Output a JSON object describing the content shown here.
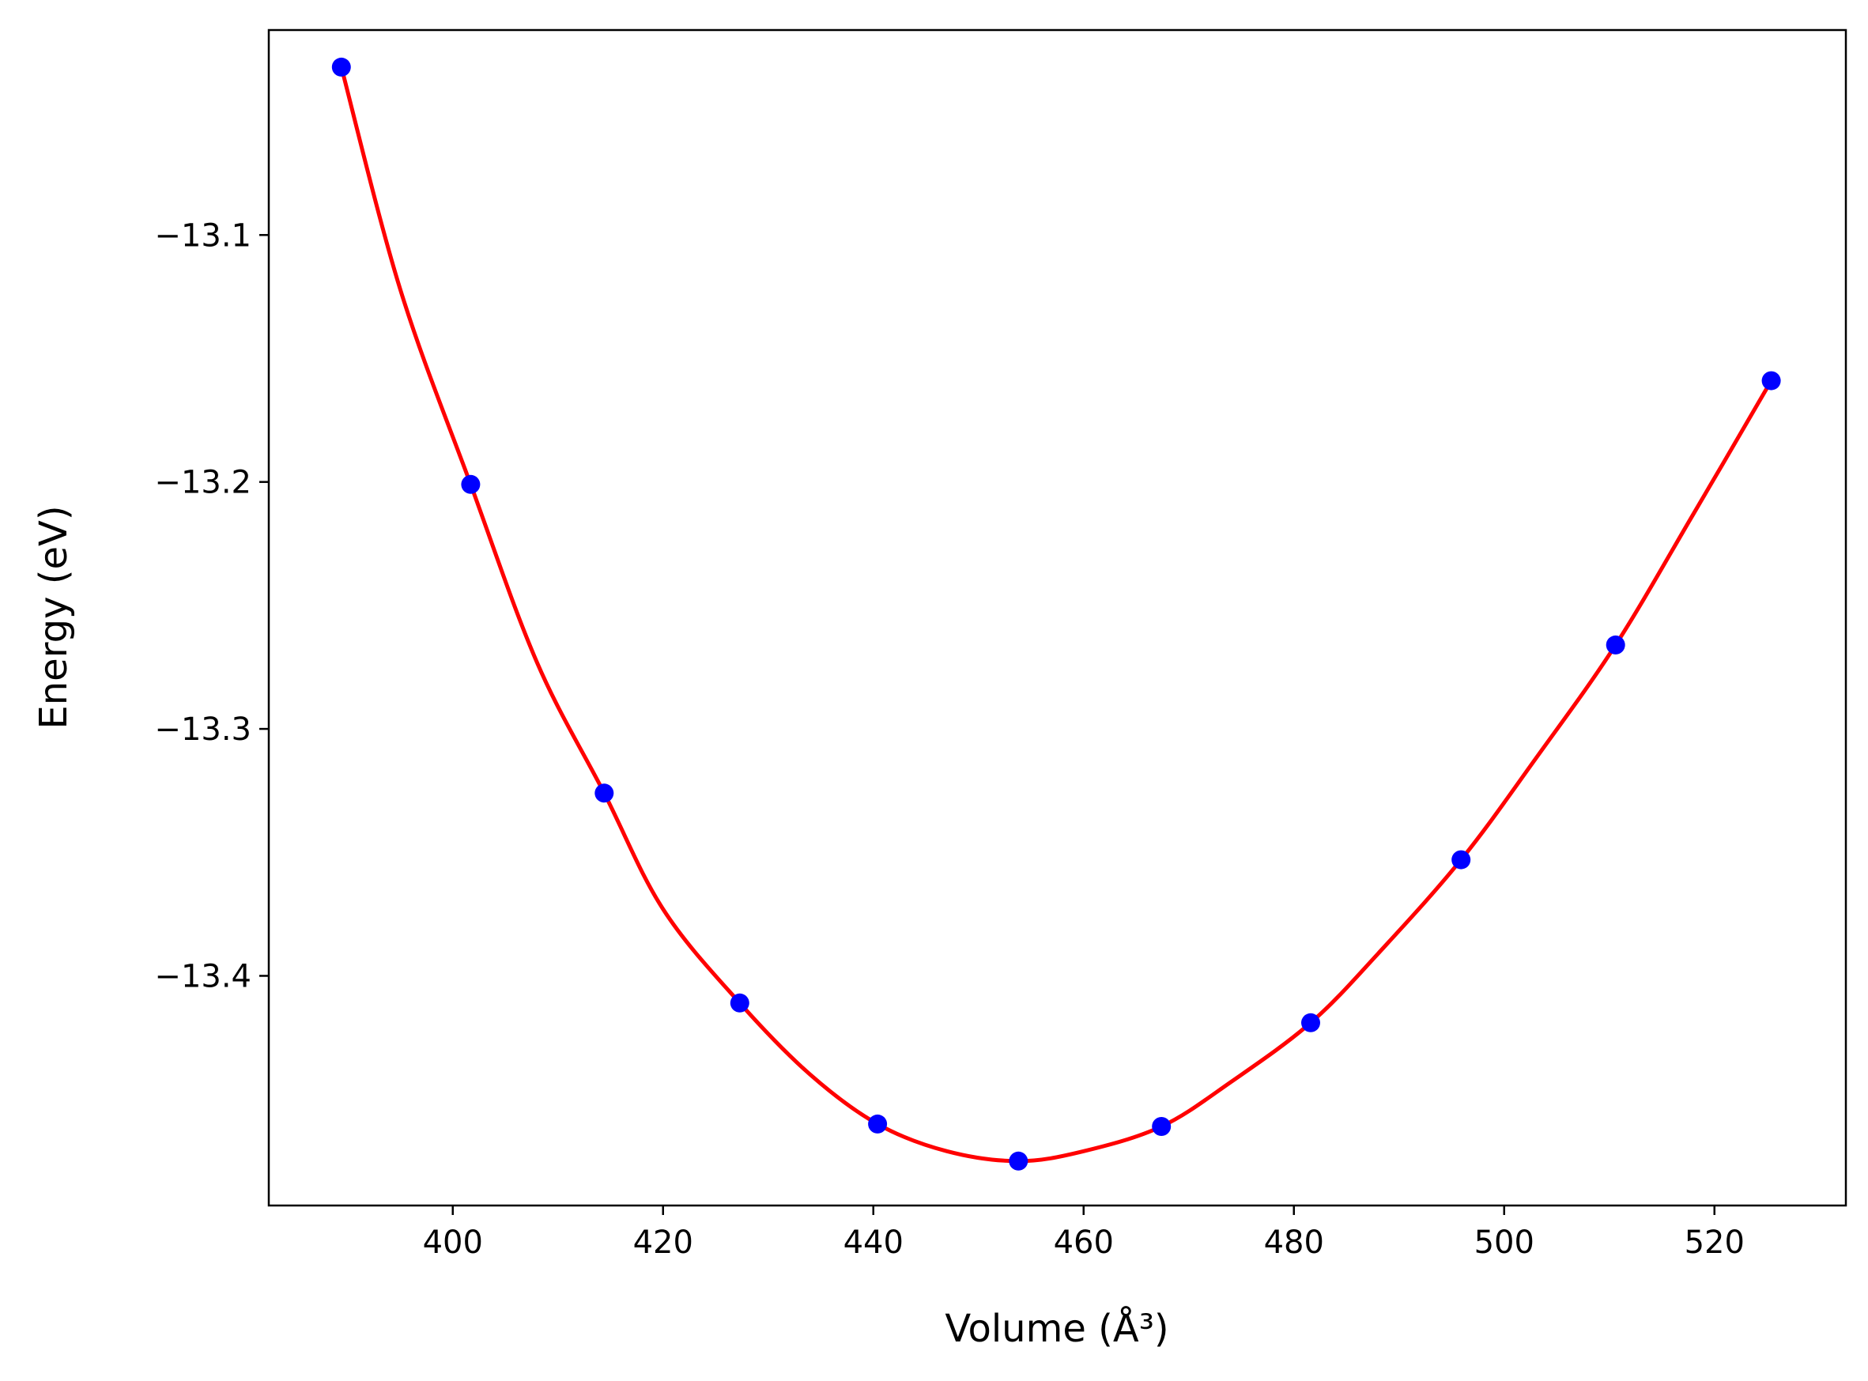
{
  "chart_data": {
    "type": "line",
    "title": "",
    "xlabel": "Volume (Å³)",
    "ylabel": "Energy (eV)",
    "xlim": [
      382.5,
      532.5
    ],
    "ylim": [
      -13.493,
      -13.017
    ],
    "xticks": [
      400,
      420,
      440,
      460,
      480,
      500,
      520
    ],
    "xtick_labels": [
      "400",
      "420",
      "440",
      "460",
      "480",
      "500",
      "520"
    ],
    "yticks": [
      -13.1,
      -13.2,
      -13.3,
      -13.4
    ],
    "ytick_labels": [
      "−13.1",
      "−13.2",
      "−13.3",
      "−13.4"
    ],
    "grid": false,
    "series": [
      {
        "kind": "points",
        "color": "#0000ff",
        "marker": "circle",
        "x": [
          389.4,
          401.7,
          414.4,
          427.3,
          440.4,
          453.8,
          467.4,
          481.6,
          495.9,
          510.6,
          525.4
        ],
        "y": [
          -13.032,
          -13.201,
          -13.326,
          -13.411,
          -13.46,
          -13.475,
          -13.461,
          -13.419,
          -13.353,
          -13.266,
          -13.159
        ]
      },
      {
        "kind": "fit",
        "color": "#ff0000",
        "x": [
          389.4,
          395,
          401.7,
          408,
          414.4,
          420,
          427.3,
          434,
          440.4,
          447,
          453.8,
          460,
          467.4,
          474,
          481.6,
          488,
          495.9,
          503,
          510.6,
          518,
          525.4
        ],
        "y": [
          -13.032,
          -13.122,
          -13.201,
          -13.273,
          -13.326,
          -13.373,
          -13.411,
          -13.44,
          -13.46,
          -13.471,
          -13.475,
          -13.471,
          -13.461,
          -13.443,
          -13.419,
          -13.391,
          -13.353,
          -13.312,
          -13.266,
          -13.213,
          -13.159
        ]
      }
    ]
  }
}
